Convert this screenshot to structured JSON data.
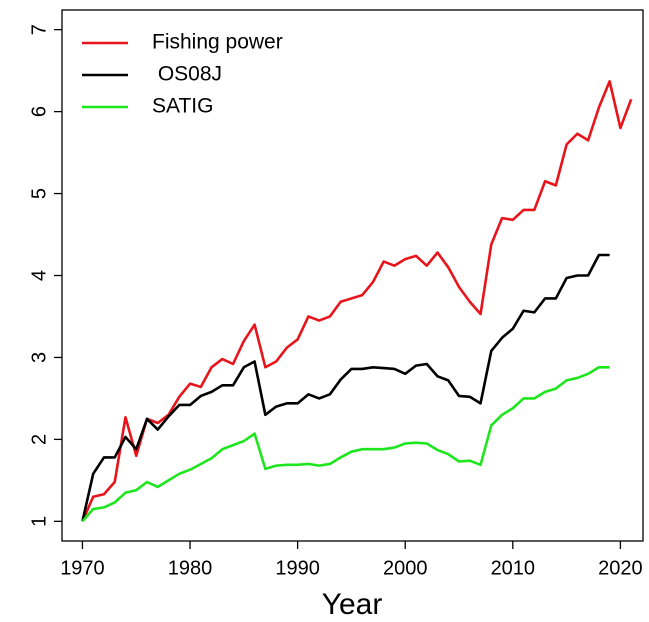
{
  "chart_data": {
    "type": "line",
    "x_label": "Year",
    "x": [
      1970,
      1971,
      1972,
      1973,
      1974,
      1975,
      1976,
      1977,
      1978,
      1979,
      1980,
      1981,
      1982,
      1983,
      1984,
      1985,
      1986,
      1987,
      1988,
      1989,
      1990,
      1991,
      1992,
      1993,
      1994,
      1995,
      1996,
      1997,
      1998,
      1999,
      2000,
      2001,
      2002,
      2003,
      2004,
      2005,
      2006,
      2007,
      2008,
      2009,
      2010,
      2011,
      2012,
      2013,
      2014,
      2015,
      2016,
      2017,
      2018,
      2019,
      2020,
      2021
    ],
    "series": [
      {
        "name": "Fishing power",
        "color": "#e8141b",
        "values": [
          1.0,
          1.3,
          1.33,
          1.48,
          2.27,
          1.8,
          2.25,
          2.2,
          2.3,
          2.52,
          2.68,
          2.64,
          2.88,
          2.98,
          2.92,
          3.2,
          3.4,
          2.88,
          2.95,
          3.12,
          3.22,
          3.5,
          3.45,
          3.5,
          3.68,
          3.72,
          3.76,
          3.92,
          4.17,
          4.12,
          4.2,
          4.24,
          4.12,
          4.28,
          4.1,
          3.86,
          3.68,
          3.53,
          4.38,
          4.7,
          4.68,
          4.8,
          4.8,
          5.15,
          5.1,
          5.6,
          5.73,
          5.65,
          6.05,
          6.37,
          5.8,
          6.15
        ]
      },
      {
        "name": " OS08J",
        "color": "#000000",
        "values": [
          1.0,
          1.58,
          1.78,
          1.78,
          2.03,
          1.88,
          2.25,
          2.12,
          2.28,
          2.42,
          2.42,
          2.53,
          2.58,
          2.66,
          2.66,
          2.88,
          2.95,
          2.3,
          2.4,
          2.44,
          2.44,
          2.55,
          2.5,
          2.55,
          2.73,
          2.86,
          2.86,
          2.88,
          2.87,
          2.86,
          2.8,
          2.9,
          2.92,
          2.77,
          2.72,
          2.53,
          2.52,
          2.44,
          3.08,
          3.24,
          3.35,
          3.57,
          3.55,
          3.72,
          3.72,
          3.97,
          4.0,
          4.0,
          4.25,
          4.25,
          null,
          null
        ]
      },
      {
        "name": "SATIG",
        "color": "#1ee61e",
        "values": [
          1.0,
          1.15,
          1.17,
          1.23,
          1.35,
          1.38,
          1.48,
          1.42,
          1.5,
          1.58,
          1.63,
          1.7,
          1.77,
          1.88,
          1.93,
          1.98,
          2.07,
          1.64,
          1.68,
          1.69,
          1.69,
          1.7,
          1.68,
          1.7,
          1.78,
          1.85,
          1.88,
          1.88,
          1.88,
          1.9,
          1.95,
          1.96,
          1.95,
          1.87,
          1.82,
          1.73,
          1.74,
          1.69,
          2.17,
          2.3,
          2.38,
          2.5,
          2.5,
          2.58,
          2.62,
          2.72,
          2.75,
          2.8,
          2.88,
          2.88,
          null,
          null
        ]
      }
    ],
    "xlim": [
      1968.1,
      2022.1
    ],
    "xticks": [
      1970,
      1980,
      1990,
      2000,
      2010,
      2020
    ],
    "ylim": [
      0.76,
      7.24
    ],
    "yticks": [
      1,
      2,
      3,
      4,
      5,
      6,
      7
    ],
    "grid": false,
    "legend": "top-left"
  }
}
